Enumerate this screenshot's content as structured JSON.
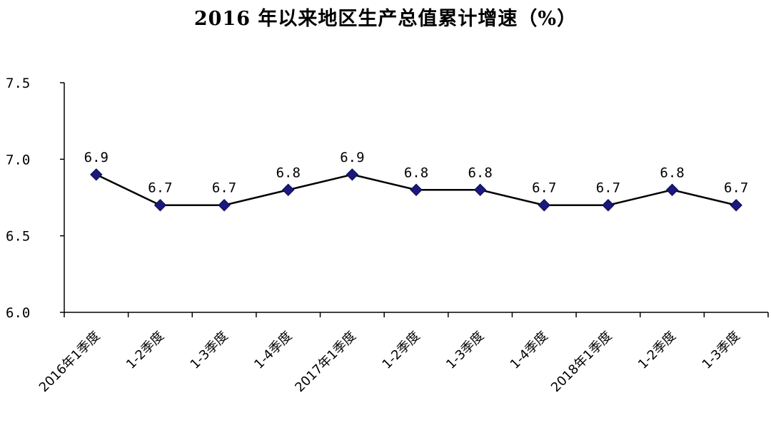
{
  "chart_data": {
    "type": "line",
    "title": "2016 年以来地区生产总值累计增速（%）",
    "xlabel": "",
    "ylabel": "",
    "categories": [
      "2016年1季度",
      "1-2季度",
      "1-3季度",
      "1-4季度",
      "2017年1季度",
      "1-2季度",
      "1-3季度",
      "1-4季度",
      "2018年1季度",
      "1-2季度",
      "1-3季度"
    ],
    "series": [
      {
        "values": [
          6.9,
          6.7,
          6.7,
          6.8,
          6.9,
          6.8,
          6.8,
          6.7,
          6.7,
          6.8,
          6.7
        ]
      }
    ],
    "data_labels": [
      "6.9",
      "6.7",
      "6.7",
      "6.8",
      "6.9",
      "6.8",
      "6.8",
      "6.7",
      "6.7",
      "6.8",
      "6.7"
    ],
    "ylim": [
      6.0,
      7.5
    ],
    "yticks": [
      {
        "value": 6.0,
        "label": "6.0"
      },
      {
        "value": 6.5,
        "label": "6.5"
      },
      {
        "value": 7.0,
        "label": "7.0"
      },
      {
        "value": 7.5,
        "label": "7.5"
      }
    ],
    "grid": false,
    "legend": "none",
    "line_color": "#000000",
    "marker_color": "#1a1a7a",
    "marker": "diamond"
  }
}
